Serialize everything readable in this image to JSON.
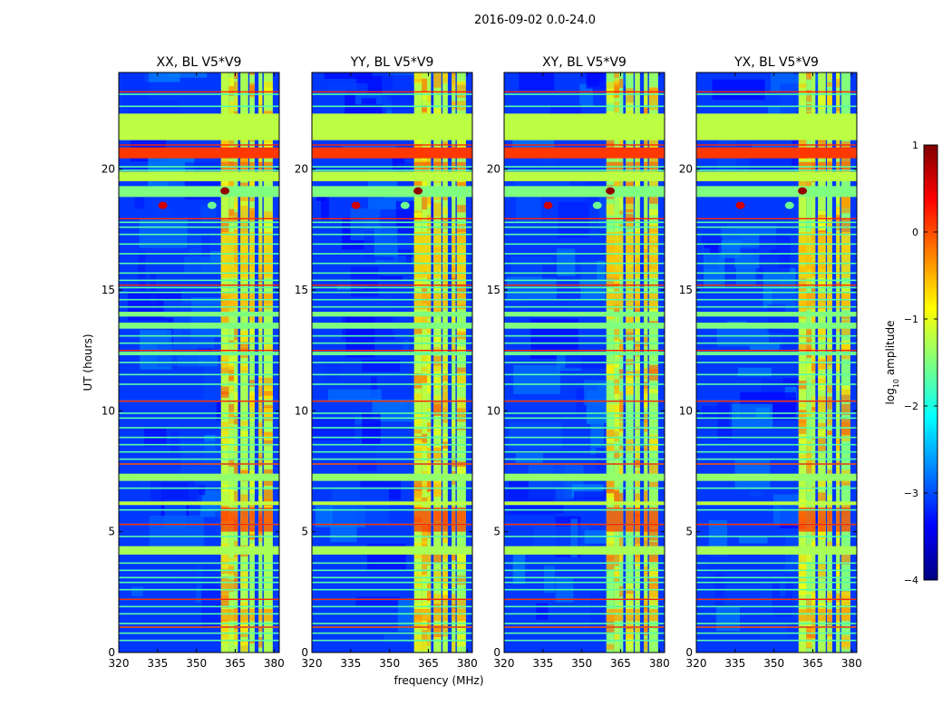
{
  "figure": {
    "suptitle": "2016-09-02 0.0-24.0",
    "xlabel": "frequency (MHz)",
    "ylabel": "UT (hours)"
  },
  "colors": {
    "cmap": [
      "#00007f",
      "#0000ff",
      "#007fff",
      "#00ffff",
      "#7fff7f",
      "#ffff00",
      "#ff7f00",
      "#ff0000",
      "#7f0000"
    ],
    "background_level": -3.1
  },
  "chart_data": {
    "type": "heatmap",
    "colormap": "jet",
    "panels": [
      {
        "title": "XX, BL V5*V9",
        "pol": "XX",
        "show_ylabel": true
      },
      {
        "title": "YY, BL V5*V9",
        "pol": "YY",
        "show_ylabel": false
      },
      {
        "title": "XY, BL V5*V9",
        "pol": "XY",
        "show_ylabel": false
      },
      {
        "title": "YX, BL V5*V9",
        "pol": "YX",
        "show_ylabel": false
      }
    ],
    "xlim": [
      320,
      382
    ],
    "ylim": [
      0,
      24
    ],
    "xticks": [
      320,
      335,
      350,
      365,
      380
    ],
    "yticks": [
      0,
      5,
      10,
      15,
      20
    ],
    "colorbar": {
      "label_main": "log",
      "label_sub": "10",
      "label_tail": " amplitude",
      "range": [
        -4,
        1
      ],
      "ticks": [
        1,
        0,
        -1,
        -2,
        -3,
        -4
      ],
      "tick_labels": [
        "1",
        "0",
        "−1",
        "−2",
        "−3",
        "−4"
      ]
    },
    "rfi_channel_bands_mhz": [
      [
        359.5,
        362.5
      ],
      [
        362.5,
        364.5
      ],
      [
        364.5,
        366
      ],
      [
        367,
        370
      ],
      [
        370.5,
        372.5
      ],
      [
        374,
        375.5
      ],
      [
        376,
        379.5
      ]
    ],
    "strong_time_bands_hours": [
      {
        "t0": 20.45,
        "t1": 20.9,
        "level": 0.1
      },
      {
        "t0": 4.05,
        "t1": 4.4,
        "level": -1.3
      },
      {
        "t0": 13.4,
        "t1": 13.65,
        "level": -1.5
      }
    ],
    "mid_time_bands_hours": [
      {
        "t0": 21.2,
        "t1": 22.3,
        "level": -1.2
      },
      {
        "t0": 19.5,
        "t1": 19.9,
        "level": -1.2
      },
      {
        "t0": 18.85,
        "t1": 19.3,
        "level": -1.5
      },
      {
        "t0": 7.1,
        "t1": 7.4,
        "level": -1.4
      },
      {
        "t0": 13.9,
        "t1": 14.1,
        "level": -1.5
      },
      {
        "t0": 6.1,
        "t1": 6.25,
        "level": -1.2
      },
      {
        "t0": 12.3,
        "t1": 12.45,
        "level": -1.6
      }
    ],
    "thin_lines_hours": [
      23.1,
      22.6,
      22.2,
      21.9,
      21.5,
      20.1,
      19.95,
      17.8,
      17.6,
      17.3,
      16.9,
      16.5,
      16.1,
      15.7,
      15.4,
      15.1,
      14.9,
      14.6,
      14.3,
      13.1,
      12.8,
      12.0,
      11.5,
      11.1,
      10.4,
      9.9,
      9.7,
      9.3,
      8.9,
      8.6,
      8.3,
      8.0,
      7.8,
      6.8,
      5.9,
      5.3,
      4.8,
      3.7,
      3.4,
      3.1,
      2.9,
      2.6,
      2.2,
      1.9,
      1.6,
      1.2,
      1.05,
      0.8,
      0.5
    ],
    "hot_lines_hours": [
      23.2,
      21.0,
      17.95,
      15.2,
      12.5,
      10.4,
      7.8,
      5.3,
      2.2,
      1.05
    ],
    "bright_spots": [
      {
        "freq": 337,
        "time": 18.5,
        "level": 0.6
      },
      {
        "freq": 361,
        "time": 19.1,
        "level": 0.9
      },
      {
        "freq": 356,
        "time": 18.5,
        "level": -1.6
      }
    ],
    "rfi_bursts_hours": [
      [
        5.0,
        6.0,
        0.1
      ],
      [
        1.3,
        1.8,
        -0.4
      ],
      [
        15.5,
        17.4,
        -0.6
      ],
      [
        14.2,
        14.9,
        -0.5
      ],
      [
        19.8,
        20.3,
        -0.1
      ]
    ]
  }
}
